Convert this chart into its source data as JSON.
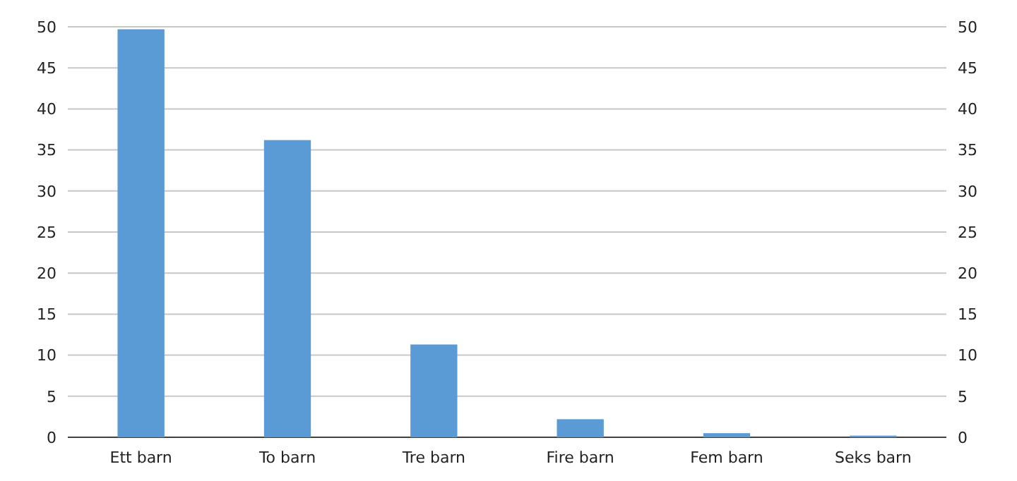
{
  "chart_data": {
    "type": "bar",
    "categories": [
      "Ett barn",
      "To barn",
      "Tre barn",
      "Fire barn",
      "Fem barn",
      "Seks barn"
    ],
    "values": [
      49.7,
      36.2,
      11.3,
      2.2,
      0.5,
      0.2
    ],
    "color": "#5b9bd5",
    "ylim": [
      0,
      50
    ],
    "yticks": [
      0,
      5,
      10,
      15,
      20,
      25,
      30,
      35,
      40,
      45,
      50
    ],
    "y2lim": [
      0,
      50
    ],
    "y2ticks": [
      0,
      5,
      10,
      15,
      20,
      25,
      30,
      35,
      40,
      45,
      50
    ],
    "grid": "y"
  }
}
